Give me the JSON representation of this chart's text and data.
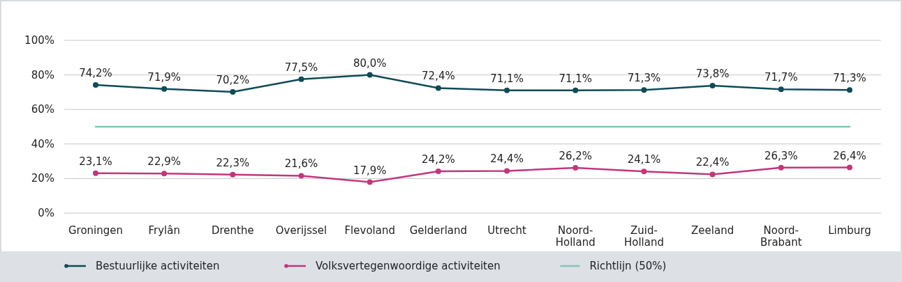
{
  "chart_data": {
    "type": "line",
    "categories": [
      "Groningen",
      "Frylân",
      "Drenthe",
      "Overijssel",
      "Flevoland",
      "Gelderland",
      "Utrecht",
      "Noord-Holland",
      "Zuid-Holland",
      "Zeeland",
      "Noord-Brabant",
      "Limburg"
    ],
    "series": [
      {
        "name": "Bestuurlijke activiteiten",
        "color": "#0e4b56",
        "marker": "circle",
        "values": [
          74.2,
          71.9,
          70.2,
          77.5,
          80.0,
          72.4,
          71.1,
          71.1,
          71.3,
          73.8,
          71.7,
          71.3
        ],
        "value_labels": [
          "74,2%",
          "71,9%",
          "70,2%",
          "77,5%",
          "80,0%",
          "72,4%",
          "71,1%",
          "71,1%",
          "71,3%",
          "73,8%",
          "71,7%",
          "71,3%"
        ]
      },
      {
        "name": "Volksvertegenwoordige activiteiten",
        "color": "#c2367b",
        "marker": "circle",
        "values": [
          23.1,
          22.9,
          22.3,
          21.6,
          17.9,
          24.2,
          24.4,
          26.2,
          24.1,
          22.4,
          26.3,
          26.4
        ],
        "value_labels": [
          "23,1%",
          "22,9%",
          "22,3%",
          "21,6%",
          "17,9%",
          "24,2%",
          "24,4%",
          "26,2%",
          "24,1%",
          "22,4%",
          "26,3%",
          "26,4%"
        ]
      },
      {
        "name": "Richtlijn (50%)",
        "color": "#7fc6b6",
        "marker": "none",
        "values": [
          50,
          50,
          50,
          50,
          50,
          50,
          50,
          50,
          50,
          50,
          50,
          50
        ]
      }
    ],
    "ylim": [
      0,
      100
    ],
    "yticks": [
      {
        "value": 0,
        "label": "0%"
      },
      {
        "value": 20,
        "label": "20%"
      },
      {
        "value": 40,
        "label": "40%"
      },
      {
        "value": 60,
        "label": "60%"
      },
      {
        "value": 80,
        "label": "80%"
      },
      {
        "value": 100,
        "label": "100%"
      }
    ],
    "grid": "y",
    "legend": "bottom"
  }
}
